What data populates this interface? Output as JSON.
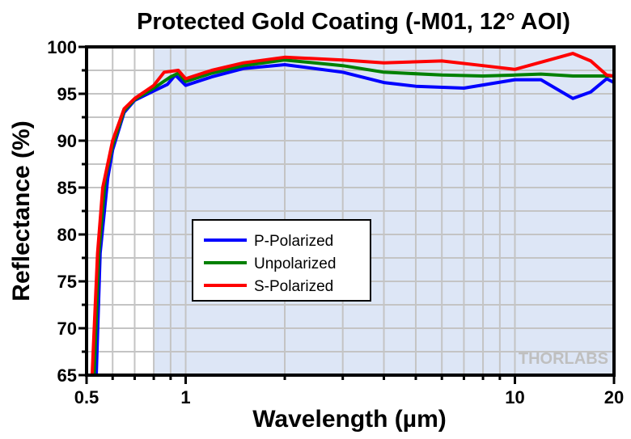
{
  "chart_data": {
    "type": "line",
    "title": "Protected Gold Coating (-M01, 12° AOI)",
    "xlabel": "Wavelength (µm)",
    "ylabel": "Reflectance (%)",
    "xscale": "log",
    "xlim": [
      0.5,
      20
    ],
    "ylim": [
      65,
      100
    ],
    "xticks": [
      0.5,
      1,
      10,
      20
    ],
    "xtick_labels": [
      "0.5",
      "1",
      "10",
      "20"
    ],
    "yticks": [
      65,
      70,
      75,
      80,
      85,
      90,
      95,
      100
    ],
    "ytick_labels": [
      "65",
      "70",
      "75",
      "80",
      "85",
      "90",
      "95",
      "100"
    ],
    "grid": true,
    "shaded_range": [
      0.8,
      20
    ],
    "shade_color": "#dde6f6",
    "legend_placement": "center-left",
    "watermark": "THORLABS",
    "series": [
      {
        "name": "P-Polarized",
        "color": "#0000ff",
        "x": [
          0.535,
          0.55,
          0.58,
          0.6,
          0.65,
          0.7,
          0.8,
          0.88,
          0.93,
          1.0,
          1.2,
          1.5,
          2,
          3,
          4,
          5,
          7,
          10,
          12,
          15,
          17,
          19,
          20
        ],
        "y": [
          65,
          78,
          86,
          89,
          93,
          94.3,
          95.3,
          96,
          97,
          95.9,
          96.8,
          97.7,
          98.1,
          97.3,
          96.2,
          95.8,
          95.6,
          96.5,
          96.5,
          94.5,
          95.2,
          96.6,
          96.2
        ]
      },
      {
        "name": "Unpolarized",
        "color": "#008000",
        "x": [
          0.527,
          0.545,
          0.57,
          0.6,
          0.65,
          0.7,
          0.8,
          0.9,
          0.95,
          1.0,
          1.2,
          1.5,
          2,
          3,
          4,
          6,
          8,
          10,
          12,
          15,
          20
        ],
        "y": [
          65,
          78,
          86,
          89.5,
          93.2,
          94.4,
          95.6,
          96.8,
          97.2,
          96.3,
          97.2,
          98,
          98.6,
          98,
          97.3,
          97,
          96.9,
          97,
          97.1,
          96.9,
          96.9
        ]
      },
      {
        "name": "S-Polarized",
        "color": "#ff0000",
        "x": [
          0.52,
          0.54,
          0.56,
          0.6,
          0.65,
          0.7,
          0.8,
          0.86,
          0.95,
          1.0,
          1.2,
          1.5,
          2,
          3,
          4,
          6,
          8,
          10,
          13,
          15,
          17,
          19,
          20
        ],
        "y": [
          65,
          78,
          85,
          90,
          93.4,
          94.5,
          95.9,
          97.3,
          97.5,
          96.6,
          97.5,
          98.3,
          98.9,
          98.6,
          98.3,
          98.5,
          98,
          97.6,
          98.7,
          99.3,
          98.5,
          97,
          96.9
        ]
      }
    ]
  }
}
